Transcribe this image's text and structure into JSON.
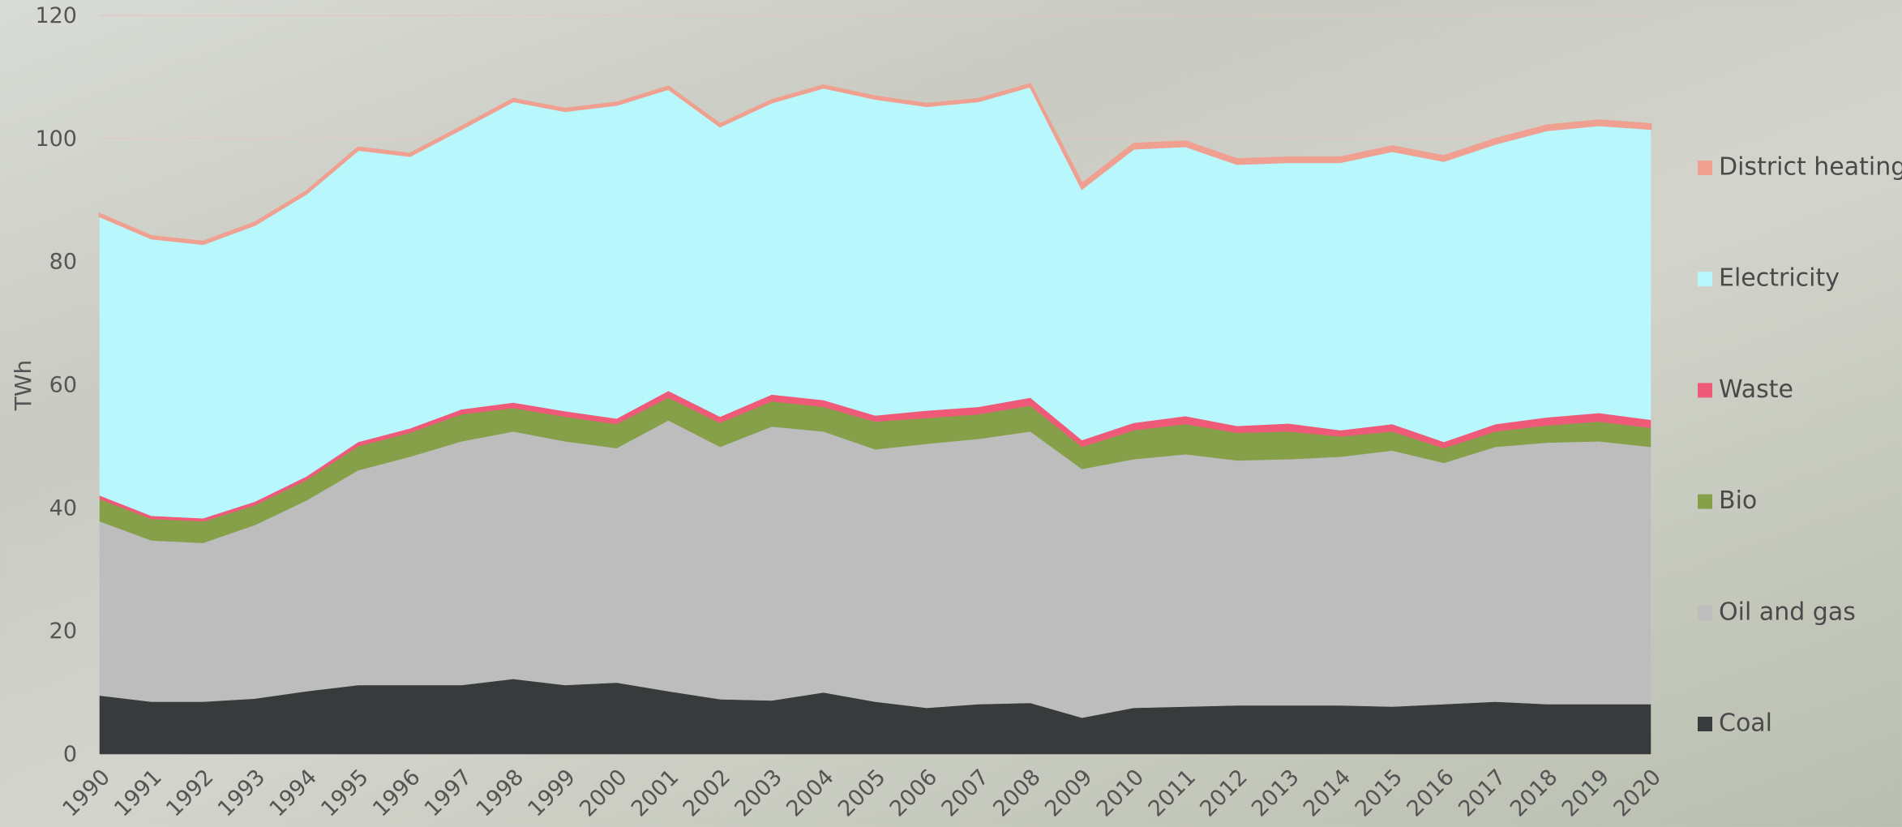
{
  "chart_data": {
    "type": "stacked_area",
    "y_label": "TWh",
    "categories": [
      "1990",
      "1991",
      "1992",
      "1993",
      "1994",
      "1995",
      "1996",
      "1997",
      "1998",
      "1999",
      "2000",
      "2001",
      "2002",
      "2003",
      "2004",
      "2005",
      "2006",
      "2007",
      "2008",
      "2009",
      "2010",
      "2011",
      "2012",
      "2013",
      "2014",
      "2015",
      "2016",
      "2017",
      "2018",
      "2019",
      "2020"
    ],
    "series": [
      {
        "name": "Coal",
        "color": "#383b3c",
        "values": [
          9.5,
          8.5,
          8.5,
          9,
          10.2,
          11.2,
          11.2,
          11.2,
          12.2,
          11.2,
          11.6,
          10.2,
          8.9,
          8.7,
          10,
          8.5,
          7.5,
          8.1,
          8.3,
          5.9,
          7.5,
          7.7,
          7.9,
          7.9,
          7.9,
          7.7,
          8.1,
          8.5,
          8.1,
          8.1,
          8.1
        ]
      },
      {
        "name": "Oil and gas",
        "color": "#bdbdbd",
        "values": [
          28.3,
          26.2,
          25.8,
          28.2,
          31,
          34.9,
          37.1,
          39.6,
          40.2,
          39.6,
          38.1,
          44,
          41,
          44.5,
          42.4,
          41,
          42.9,
          43.1,
          44.1,
          40.4,
          40.4,
          41,
          39.8,
          40,
          40.4,
          41.6,
          39.2,
          41.4,
          42.5,
          42.7,
          41.8
        ]
      },
      {
        "name": "Bio",
        "color": "#86a04a",
        "values": [
          3.6,
          3.5,
          3.5,
          3.2,
          3.3,
          3.9,
          3.9,
          4.4,
          3.8,
          4,
          3.9,
          3.7,
          3.9,
          4.1,
          4,
          4.5,
          4.2,
          4,
          4.2,
          3.6,
          4.7,
          4.9,
          4.5,
          4.5,
          3.3,
          3.1,
          2.4,
          2.5,
          2.8,
          3.2,
          3.1
        ]
      },
      {
        "name": "Waste",
        "color": "#ee5a78",
        "values": [
          0.6,
          0.5,
          0.5,
          0.6,
          0.6,
          0.7,
          0.7,
          0.8,
          0.9,
          0.9,
          0.9,
          1.1,
          1,
          1.1,
          1.1,
          1,
          1.2,
          1.2,
          1.3,
          1.1,
          1.2,
          1.3,
          1.1,
          1.3,
          1,
          1.2,
          1,
          1.2,
          1.3,
          1.4,
          1.3
        ]
      },
      {
        "name": "Electricity",
        "color": "#b8f8fd",
        "values": [
          45.4,
          45.1,
          44.6,
          45,
          46,
          47.5,
          44.3,
          45.6,
          49,
          48.8,
          51,
          49.1,
          47.2,
          47.5,
          50.8,
          51.5,
          49.5,
          49.7,
          50.6,
          40.9,
          44.6,
          43.9,
          42.6,
          42.5,
          43.6,
          44.4,
          45.7,
          45.6,
          46.7,
          46.8,
          47.3
        ]
      },
      {
        "name": "District heating",
        "color": "#f0a090",
        "values": [
          0.3,
          0.3,
          0.3,
          0.3,
          0.3,
          0.3,
          0.3,
          0.3,
          0.3,
          0.3,
          0.3,
          0.3,
          0.3,
          0.3,
          0.3,
          0.3,
          0.3,
          0.3,
          0.3,
          0.7,
          0.7,
          0.7,
          0.7,
          0.7,
          0.7,
          0.7,
          0.7,
          0.7,
          0.7,
          0.7,
          0.7
        ]
      }
    ],
    "ylim": [
      0,
      120
    ],
    "yticks": [
      0,
      20,
      40,
      60,
      80,
      100,
      120
    ],
    "grid": true,
    "legend": "right"
  }
}
